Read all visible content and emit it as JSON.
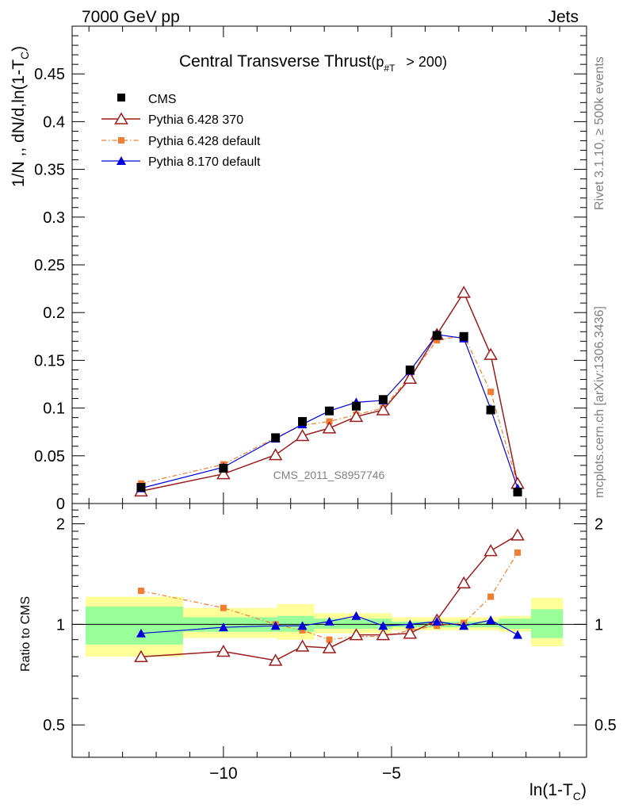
{
  "header": {
    "left": "7000 GeV pp",
    "right": "Jets"
  },
  "side_labels": {
    "rivet": "Rivet 3.1.10, ≥ 500k events",
    "mcplots": "mcplots.cern.ch [arXiv:1306.3436]"
  },
  "chart_data": {
    "type": "line",
    "title": "Central Transverse Thrust",
    "title_sub": "(p",
    "title_sub_index": "#T",
    "title_cut": "> 200)",
    "ylabel": "1/N ,, dN/d,ln(1-T",
    "ylabel_sub": "C",
    "ylabel_close": ")",
    "xlabel": "ln(1-T",
    "xlabel_sub": "C",
    "xlabel_close": ")",
    "analysis_id": "CMS_2011_S8957746",
    "xlim": [
      -14.5,
      0.8
    ],
    "ylim_main": [
      0,
      0.5
    ],
    "ylim_ratio": [
      0.4,
      2.3
    ],
    "x_ticks": [
      -10,
      -5
    ],
    "x_tick_labels": [
      "−10",
      "−5"
    ],
    "y_ticks_main": [
      0,
      0.05,
      0.1,
      0.15,
      0.2,
      0.25,
      0.3,
      0.35,
      0.4,
      0.45
    ],
    "y_tick_labels_main": [
      "0",
      "0.05",
      "0.1",
      "0.15",
      "0.2",
      "0.25",
      "0.3",
      "0.35",
      "0.4",
      "0.45"
    ],
    "ratio": {
      "ylabel": "Ratio to CMS",
      "y_ticks": [
        0.5,
        1,
        2
      ],
      "y_tick_labels": [
        "0.5",
        "1",
        "2"
      ]
    },
    "legend": {
      "placement": "top-left"
    },
    "x": [
      -12.45,
      -10.0,
      -8.45,
      -7.65,
      -6.85,
      -6.05,
      -5.25,
      -4.45,
      -3.65,
      -2.85,
      -2.05,
      -1.25
    ],
    "series": [
      {
        "name": "CMS",
        "color": "#000000",
        "marker": "square",
        "line": "none",
        "values": [
          0.017,
          0.037,
          0.069,
          0.086,
          0.097,
          0.102,
          0.109,
          0.14,
          0.176,
          0.175,
          0.098,
          0.012
        ],
        "ratio": [
          1,
          1,
          1,
          1,
          1,
          1,
          1,
          1,
          1,
          1,
          1,
          1
        ]
      },
      {
        "name": "Pythia 6.428 370",
        "color": "#9b1c1c",
        "marker": "triangle-open",
        "line": "solid",
        "values": [
          0.013,
          0.031,
          0.051,
          0.071,
          0.079,
          0.091,
          0.098,
          0.131,
          0.177,
          0.221,
          0.156,
          0.021
        ],
        "ratio": [
          0.8,
          0.83,
          0.78,
          0.86,
          0.85,
          0.93,
          0.93,
          0.94,
          1.03,
          1.33,
          1.66,
          1.85
        ]
      },
      {
        "name": "Pythia 6.428 default",
        "color": "#f07d32",
        "marker": "square-small",
        "line": "dashdot",
        "values": [
          0.021,
          0.041,
          0.069,
          0.082,
          0.086,
          0.093,
          0.1,
          0.133,
          0.171,
          0.176,
          0.117,
          0.02
        ],
        "ratio": [
          1.26,
          1.12,
          1.0,
          0.96,
          0.9,
          0.92,
          0.92,
          0.96,
          0.99,
          1.01,
          1.21,
          1.64
        ]
      },
      {
        "name": "Pythia 8.170 default",
        "color": "#0000dd",
        "marker": "triangle",
        "line": "solid",
        "values": [
          0.016,
          0.038,
          0.068,
          0.083,
          0.097,
          0.106,
          0.108,
          0.139,
          0.177,
          0.173,
          0.099,
          0.016
        ],
        "ratio": [
          0.94,
          0.98,
          0.99,
          0.99,
          1.02,
          1.06,
          0.99,
          1.0,
          1.02,
          0.99,
          1.03,
          0.93
        ]
      }
    ],
    "ratio_band_inner": [
      {
        "x0": -14.1,
        "x1": -11.2,
        "lo": 0.87,
        "hi": 1.13
      },
      {
        "x0": -11.2,
        "x1": -8.4,
        "lo": 0.95,
        "hi": 1.05
      },
      {
        "x0": -8.4,
        "x1": -7.3,
        "lo": 0.95,
        "hi": 1.06
      },
      {
        "x0": -7.3,
        "x1": -5.0,
        "lo": 0.97,
        "hi": 1.04
      },
      {
        "x0": -5.0,
        "x1": -1.8,
        "lo": 0.98,
        "hi": 1.02
      },
      {
        "x0": -1.8,
        "x1": -0.85,
        "lo": 0.97,
        "hi": 1.04
      },
      {
        "x0": -0.85,
        "x1": 0.1,
        "lo": 0.91,
        "hi": 1.11
      }
    ],
    "ratio_band_outer": [
      {
        "x0": -14.1,
        "x1": -11.2,
        "lo": 0.8,
        "hi": 1.21
      },
      {
        "x0": -11.2,
        "x1": -8.4,
        "lo": 0.91,
        "hi": 1.12
      },
      {
        "x0": -8.4,
        "x1": -7.3,
        "lo": 0.9,
        "hi": 1.15
      },
      {
        "x0": -7.3,
        "x1": -5.0,
        "lo": 0.94,
        "hi": 1.08
      },
      {
        "x0": -5.0,
        "x1": -1.8,
        "lo": 0.96,
        "hi": 1.05
      },
      {
        "x0": -1.8,
        "x1": -0.85,
        "lo": 0.95,
        "hi": 1.06
      },
      {
        "x0": -0.85,
        "x1": 0.1,
        "lo": 0.86,
        "hi": 1.2
      }
    ]
  }
}
